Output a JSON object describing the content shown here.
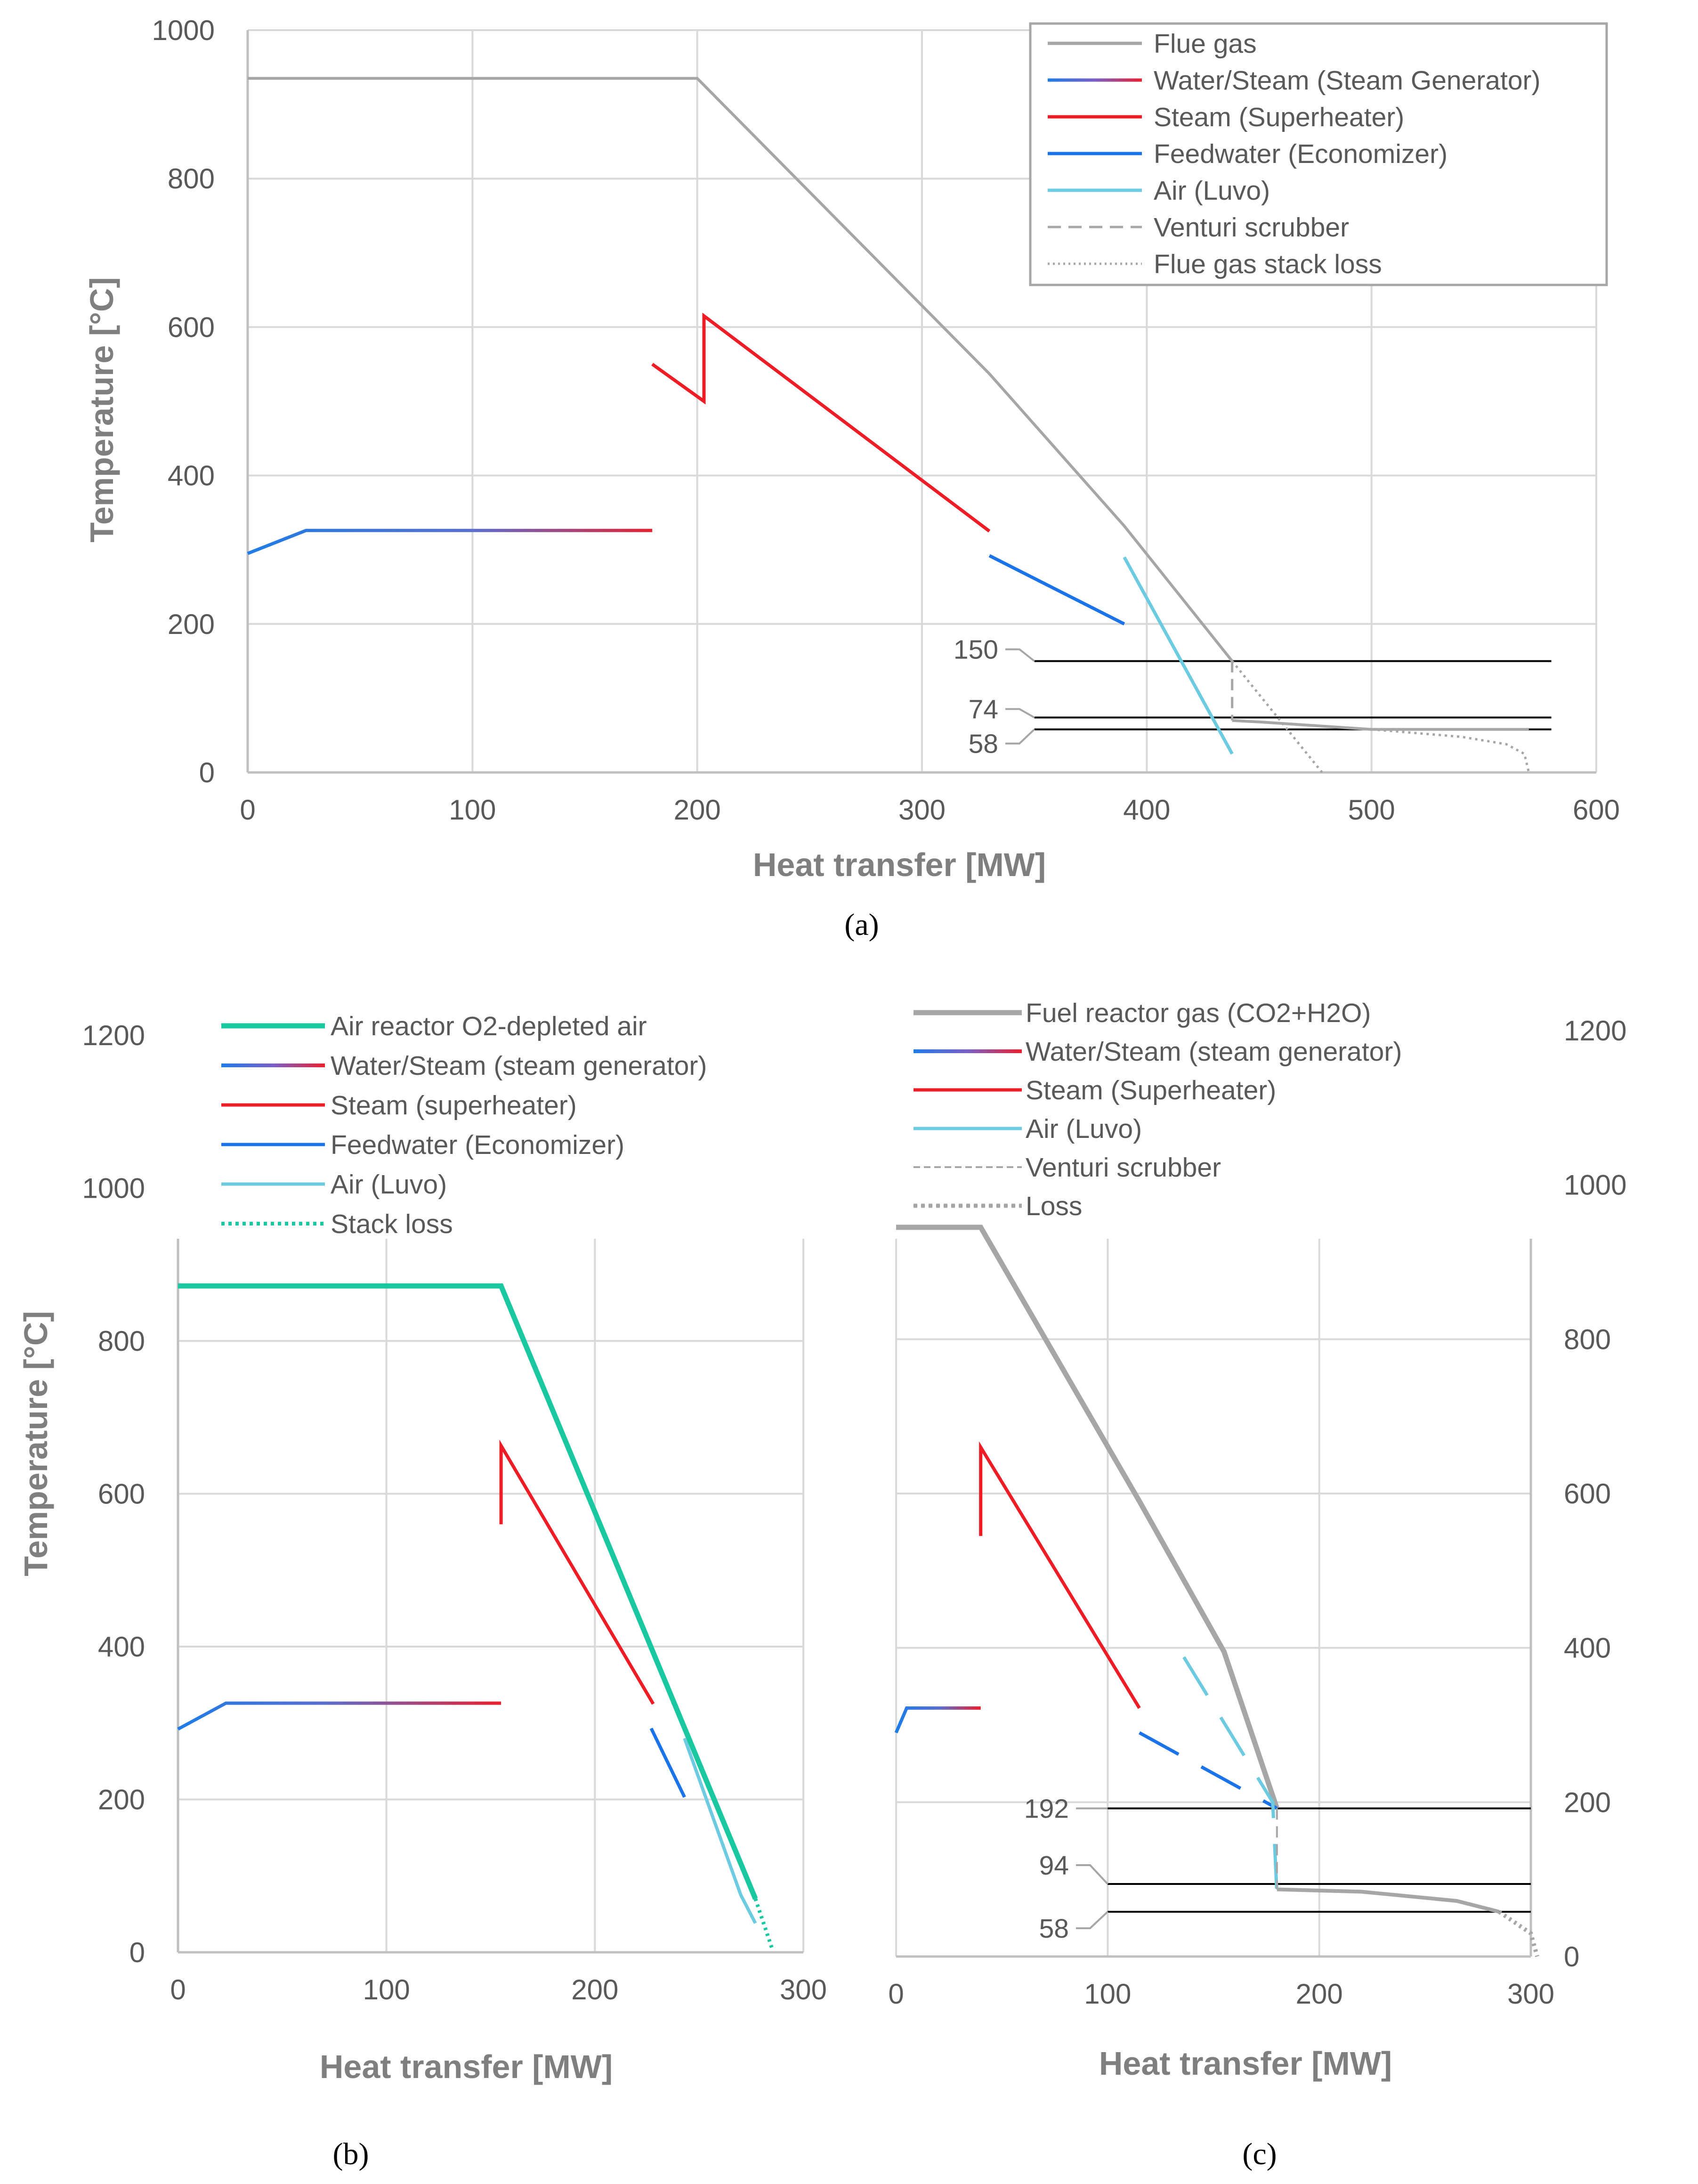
{
  "panel_labels": {
    "a": "(a)",
    "b": "(b)",
    "c": "(c)"
  },
  "colors": {
    "flue_gas": "#a6a6a6",
    "water_steam_blue": "#1f7ce6",
    "water_steam_red": "#e8212f",
    "steam": "#ee1c24",
    "feedwater": "#1a73e8",
    "air": "#6ccbe0",
    "air_reactor": "#19c8a0",
    "grid": "#d9d9d9",
    "axis": "#bfbfbf",
    "reference_line": "#000000"
  },
  "chart_data": [
    {
      "id": "a",
      "type": "line",
      "xlabel": "Heat transfer [MW]",
      "ylabel": "Temperature [°C]",
      "xlim": [
        0,
        600
      ],
      "ylim": [
        0,
        1000
      ],
      "xticks": [
        "0",
        "100",
        "200",
        "300",
        "400",
        "500",
        "600"
      ],
      "yticks": [
        "0",
        "200",
        "400",
        "600",
        "800",
        "1000"
      ],
      "grid": true,
      "legend_position": "top-right",
      "series": [
        {
          "name": "Flue gas",
          "style": "solid",
          "color": "#a6a6a6",
          "width": 6,
          "x": [
            0,
            200,
            330,
            390,
            438
          ],
          "y": [
            935,
            935,
            537,
            332,
            150
          ]
        },
        {
          "name": "",
          "style": "solid",
          "color": "#a6a6a6",
          "width": 6,
          "x": [
            438,
            450,
            500,
            570
          ],
          "y": [
            70,
            68,
            58,
            58
          ]
        },
        {
          "name": "Water/Steam (Steam Generator)",
          "style": "gradient",
          "x": [
            0,
            26,
            180
          ],
          "y": [
            295,
            326,
            326
          ]
        },
        {
          "name": "Steam (Superheater)",
          "style": "solid",
          "color": "#ee1c24",
          "width": 7,
          "x": [
            180,
            203,
            203,
            330
          ],
          "y": [
            550,
            500,
            615,
            325
          ]
        },
        {
          "name": "Feedwater (Economizer)",
          "style": "solid",
          "color": "#1a73e8",
          "width": 7,
          "x": [
            330,
            390
          ],
          "y": [
            292,
            200
          ]
        },
        {
          "name": "Air (Luvo)",
          "style": "solid",
          "color": "#6ccbe0",
          "width": 7,
          "x": [
            390,
            438
          ],
          "y": [
            290,
            25
          ]
        },
        {
          "name": "Venturi scrubber",
          "style": "dashed",
          "color": "#a6a6a6",
          "width": 5,
          "x": [
            438,
            438
          ],
          "y": [
            150,
            70
          ]
        },
        {
          "name": "Flue gas stack loss",
          "style": "dotted",
          "color": "#a6a6a6",
          "width": 5,
          "x": [
            438,
            478
          ],
          "y": [
            150,
            0
          ]
        },
        {
          "name": "",
          "style": "dotted",
          "color": "#a6a6a6",
          "width": 5,
          "x": [
            500,
            540,
            560,
            568,
            570
          ],
          "y": [
            58,
            48,
            38,
            25,
            0
          ]
        }
      ],
      "reference_lines": [
        {
          "label": "150",
          "y": 150,
          "x_start": 350,
          "x_end": 580
        },
        {
          "label": "74",
          "y": 74,
          "x_start": 350,
          "x_end": 580
        },
        {
          "label": "58",
          "y": 58,
          "x_start": 350,
          "x_end": 580
        }
      ]
    },
    {
      "id": "b",
      "type": "line",
      "xlabel": "Heat transfer [MW]",
      "ylabel": "Temperature [°C]",
      "xlim": [
        0,
        300
      ],
      "ylim": [
        0,
        1200
      ],
      "xticks": [
        "0",
        "100",
        "200",
        "300"
      ],
      "yticks": [
        "0",
        "200",
        "400",
        "600",
        "800",
        "1000",
        "1200"
      ],
      "grid": true,
      "legend_position": "top-left",
      "series": [
        {
          "name": "Air reactor O2-depleted air",
          "style": "solid",
          "color": "#19c8a0",
          "width": 11,
          "x": [
            0,
            155,
            277
          ],
          "y": [
            872,
            872,
            70
          ]
        },
        {
          "name": "Water/Steam (steam generator)",
          "style": "gradient",
          "x": [
            0,
            23,
            155
          ],
          "y": [
            292,
            326,
            326
          ]
        },
        {
          "name": "Steam (superheater)",
          "style": "solid",
          "color": "#ee1c24",
          "width": 7,
          "x": [
            155,
            155,
            228
          ],
          "y": [
            560,
            663,
            325
          ]
        },
        {
          "name": "Feedwater (Economizer)",
          "style": "solid",
          "color": "#1a73e8",
          "width": 7,
          "x": [
            227,
            243
          ],
          "y": [
            293,
            203
          ]
        },
        {
          "name": "Air (Luvo)",
          "style": "solid",
          "color": "#6ccbe0",
          "width": 7,
          "x": [
            243,
            270,
            277
          ],
          "y": [
            280,
            75,
            38
          ]
        },
        {
          "name": "Stack loss",
          "style": "dotted",
          "color": "#19c8a0",
          "width": 8,
          "x": [
            277,
            285
          ],
          "y": [
            70,
            5
          ]
        }
      ],
      "reference_lines": []
    },
    {
      "id": "c",
      "type": "line",
      "xlabel": "Heat transfer [MW]",
      "ylabel": "",
      "xlim": [
        0,
        300
      ],
      "ylim": [
        0,
        1200
      ],
      "xticks": [
        "0",
        "100",
        "200",
        "300"
      ],
      "yticks": [
        "0",
        "200",
        "400",
        "600",
        "800",
        "1000",
        "1200"
      ],
      "y_axis_side": "right",
      "grid": true,
      "legend_position": "top-left",
      "series": [
        {
          "name": "Fuel reactor gas (CO2+H2O)",
          "style": "solid",
          "color": "#a6a6a6",
          "width": 11,
          "x": [
            0,
            40,
            115,
            155,
            180
          ],
          "y": [
            945,
            945,
            590,
            395,
            192
          ]
        },
        {
          "name": "",
          "style": "solid",
          "color": "#a6a6a6",
          "width": 8,
          "x": [
            180,
            220,
            265,
            285
          ],
          "y": [
            87,
            84,
            72,
            58
          ]
        },
        {
          "name": "Water/Steam (steam generator)",
          "style": "gradient",
          "x": [
            0,
            5,
            40
          ],
          "y": [
            290,
            322,
            322
          ]
        },
        {
          "name": "Steam (Superheater)",
          "style": "solid",
          "color": "#ee1c24",
          "width": 7,
          "x": [
            40,
            40,
            115
          ],
          "y": [
            545,
            660,
            322
          ]
        },
        {
          "name": "",
          "style": "dashed-long",
          "color": "#1a73e8",
          "width": 7,
          "x": [
            115,
            180
          ],
          "y": [
            290,
            192
          ]
        },
        {
          "name": "Air (Luvo)",
          "style": "dashed-long",
          "color": "#6ccbe0",
          "width": 7,
          "x": [
            136,
            178,
            180
          ],
          "y": [
            388,
            200,
            80
          ]
        },
        {
          "name": "Venturi scrubber",
          "style": "dashed",
          "color": "#a6a6a6",
          "width": 4,
          "x": [
            180,
            180
          ],
          "y": [
            192,
            87
          ]
        },
        {
          "name": "Loss",
          "style": "dotted",
          "color": "#a6a6a6",
          "width": 9,
          "x": [
            285,
            300,
            303
          ],
          "y": [
            58,
            30,
            0
          ]
        }
      ],
      "reference_lines": [
        {
          "label": "192",
          "y": 192,
          "x_start": 100,
          "x_end": 300
        },
        {
          "label": "94",
          "y": 94,
          "x_start": 100,
          "x_end": 300
        },
        {
          "label": "58",
          "y": 58,
          "x_start": 100,
          "x_end": 300
        }
      ]
    }
  ]
}
